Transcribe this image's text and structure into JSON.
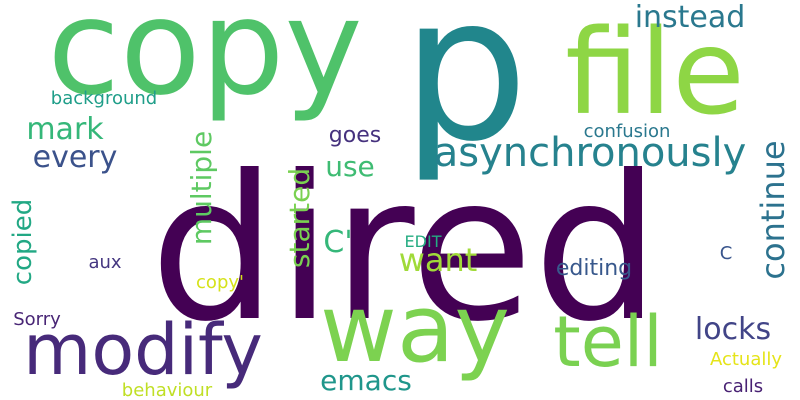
{
  "words": {
    "dired": {
      "text": "dired",
      "color": "#440154"
    },
    "copy": {
      "text": "copy",
      "color": "#4fc26a"
    },
    "p": {
      "text": "p",
      "color": "#21868c"
    },
    "file": {
      "text": "file",
      "color": "#8ed645"
    },
    "way": {
      "text": "way",
      "color": "#7cd250"
    },
    "modify": {
      "text": "modify",
      "color": "#472a7a"
    },
    "tell": {
      "text": "tell",
      "color": "#7ad151"
    },
    "asynchronously": {
      "text": "asynchronously",
      "color": "#26828e"
    },
    "instead": {
      "text": "instead",
      "color": "#2a788e"
    },
    "continue": {
      "text": "continue",
      "color": "#2c728e"
    },
    "multiple": {
      "text": "multiple",
      "color": "#5ec962"
    },
    "mark": {
      "text": "mark",
      "color": "#35b779"
    },
    "every": {
      "text": "every",
      "color": "#3b528b"
    },
    "copied": {
      "text": "copied",
      "color": "#22a884"
    },
    "background": {
      "text": "background",
      "color": "#1f9e89"
    },
    "goes": {
      "text": "goes",
      "color": "#46327e"
    },
    "use": {
      "text": "use",
      "color": "#3fbc73"
    },
    "confusion": {
      "text": "confusion",
      "color": "#2a788e"
    },
    "started": {
      "text": "started",
      "color": "#7ad151"
    },
    "c_quote": {
      "text": "C'",
      "color": "#35b779"
    },
    "want": {
      "text": "want",
      "color": "#a0da39"
    },
    "edit": {
      "text": "EDIT",
      "color": "#25ac82"
    },
    "editing": {
      "text": "editing",
      "color": "#38588c"
    },
    "c": {
      "text": "C",
      "color": "#39558c"
    },
    "aux": {
      "text": "aux",
      "color": "#453781"
    },
    "copy_quote": {
      "text": "copy'",
      "color": "#d5e21a"
    },
    "locks": {
      "text": "locks",
      "color": "#414487"
    },
    "sorry": {
      "text": "Sorry",
      "color": "#482575"
    },
    "emacs": {
      "text": "emacs",
      "color": "#1f968b"
    },
    "actually": {
      "text": "Actually",
      "color": "#e5e419"
    },
    "behaviour": {
      "text": "behaviour",
      "color": "#c0df25"
    },
    "calls": {
      "text": "calls",
      "color": "#482173"
    }
  }
}
